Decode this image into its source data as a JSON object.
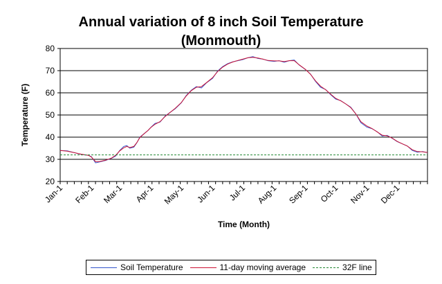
{
  "chart_data": {
    "type": "line",
    "title": "Annual variation of 8 inch Soil Temperature",
    "subtitle": "(Monmouth)",
    "xlabel": "Time (Month)",
    "ylabel": "Temperature (F)",
    "ylim": [
      20,
      80
    ],
    "yticks": [
      20,
      30,
      40,
      50,
      60,
      70,
      80
    ],
    "xlim": [
      1,
      365
    ],
    "month_labels": [
      "Jan-1",
      "Feb-1",
      "Mar-1",
      "Apr-1",
      "May-1",
      "Jun-1",
      "Jul-1",
      "Aug-1",
      "Sep-1",
      "Oct-1",
      "Nov-1",
      "Dec-1"
    ],
    "month_days": [
      1,
      32,
      60,
      91,
      121,
      152,
      182,
      213,
      244,
      274,
      305,
      335
    ],
    "grid": "horizontal",
    "legend_position": "bottom",
    "series": [
      {
        "name": "Soil Temperature",
        "color": "#3355cc",
        "style": "solid",
        "x": [
          1,
          8,
          15,
          22,
          29,
          32,
          36,
          40,
          46,
          52,
          56,
          60,
          64,
          67,
          70,
          74,
          77,
          80,
          84,
          88,
          91,
          95,
          100,
          105,
          110,
          115,
          121,
          126,
          131,
          136,
          141,
          146,
          152,
          157,
          162,
          167,
          172,
          177,
          182,
          187,
          192,
          197,
          202,
          207,
          213,
          218,
          223,
          228,
          233,
          238,
          244,
          249,
          254,
          259,
          264,
          269,
          274,
          279,
          284,
          289,
          294,
          299,
          305,
          310,
          315,
          320,
          325,
          330,
          335,
          340,
          345,
          350,
          355,
          360,
          365
        ],
        "values": [
          34,
          33.8,
          33,
          32.2,
          31.8,
          31.2,
          28.4,
          28.8,
          29.5,
          30.5,
          31.5,
          34,
          35.8,
          36.2,
          35,
          35.5,
          37.5,
          40,
          41.5,
          43,
          44.5,
          46.2,
          46.8,
          49.5,
          51.2,
          52.8,
          55.5,
          58.8,
          61.2,
          62.8,
          62.2,
          64.5,
          66.5,
          69.8,
          71.8,
          73.2,
          74,
          74.5,
          75,
          75.8,
          76.3,
          75.5,
          75.2,
          74.5,
          74.2,
          74.5,
          73.8,
          74.5,
          74.8,
          72.5,
          70.5,
          68.5,
          65.2,
          62.5,
          61.5,
          59.2,
          57.2,
          56.5,
          55,
          53.5,
          50.5,
          46.5,
          44.5,
          43.8,
          42.5,
          40.5,
          40.8,
          39.5,
          38,
          37,
          36,
          34,
          33.2,
          33.5,
          33
        ]
      },
      {
        "name": "11-day moving average",
        "color": "#cc1133",
        "style": "solid",
        "x": [
          1,
          8,
          15,
          22,
          29,
          32,
          36,
          40,
          46,
          52,
          56,
          60,
          64,
          67,
          70,
          74,
          77,
          80,
          84,
          88,
          91,
          95,
          100,
          105,
          110,
          115,
          121,
          126,
          131,
          136,
          141,
          146,
          152,
          157,
          162,
          167,
          172,
          177,
          182,
          187,
          192,
          197,
          202,
          207,
          213,
          218,
          223,
          228,
          233,
          238,
          244,
          249,
          254,
          259,
          264,
          269,
          274,
          279,
          284,
          289,
          294,
          299,
          305,
          310,
          315,
          320,
          325,
          330,
          335,
          340,
          345,
          350,
          355,
          360,
          365
        ],
        "values": [
          34,
          33.7,
          33,
          32.3,
          31.8,
          31,
          29,
          29,
          29.6,
          30.6,
          31.8,
          33.8,
          35.2,
          35.8,
          35.3,
          35.8,
          37.6,
          39.8,
          41.5,
          43,
          44.4,
          45.8,
          47,
          49.3,
          51.2,
          53,
          55.6,
          58.6,
          61,
          62.5,
          62.8,
          64.6,
          66.8,
          69.6,
          71.6,
          73,
          73.9,
          74.6,
          75.2,
          75.8,
          76,
          75.7,
          75.2,
          74.6,
          74.4,
          74.4,
          74.1,
          74.5,
          74.5,
          72.6,
          70.6,
          68.4,
          65.4,
          63,
          61.4,
          59.4,
          57.5,
          56.4,
          55,
          53.3,
          50.5,
          47,
          45,
          43.9,
          42.4,
          40.9,
          40.6,
          39.6,
          38.1,
          37,
          36,
          34.3,
          33.5,
          33.4,
          33.1
        ]
      },
      {
        "name": "32F line",
        "color": "#228833",
        "style": "dashed",
        "x": [
          1,
          365
        ],
        "values": [
          32,
          32
        ]
      }
    ]
  }
}
